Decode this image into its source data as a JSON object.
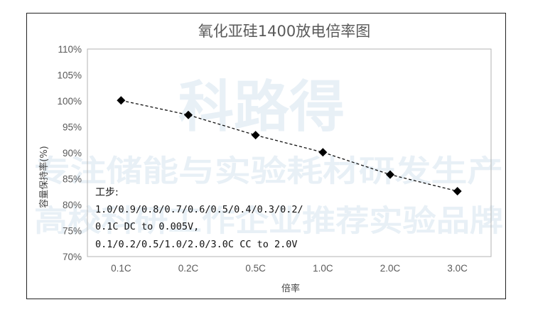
{
  "watermark": {
    "logo_text": "科路得",
    "line1": "专注储能与实验耗材研发生产",
    "line2": "高校科研工作企业推荐实验品牌"
  },
  "chart_data": {
    "type": "line",
    "title": "氧化亚硅1400放电倍率图",
    "xlabel": "倍率",
    "ylabel": "容量保持率(%)",
    "categories": [
      "0.1C",
      "0.2C",
      "0.5C",
      "1.0C",
      "2.0C",
      "3.0C"
    ],
    "series": [
      {
        "values": [
          100.1,
          97.3,
          93.4,
          90.1,
          85.8,
          82.6
        ]
      }
    ],
    "ylim": [
      70,
      110
    ],
    "yticks": [
      "70%",
      "75%",
      "80%",
      "85%",
      "90%",
      "95%",
      "100%",
      "105%",
      "110%"
    ],
    "grid": "none",
    "marker": "diamond",
    "line_style": "dashed",
    "annotation": {
      "heading": "工步:",
      "lines": [
        "1.0/0.9/0.8/0.7/0.6/0.5/0.4/0.3/0.2/",
        "0.1C DC to 0.005V,",
        "0.1/0.2/0.5/1.0/2.0/3.0C CC to 2.0V"
      ]
    }
  }
}
